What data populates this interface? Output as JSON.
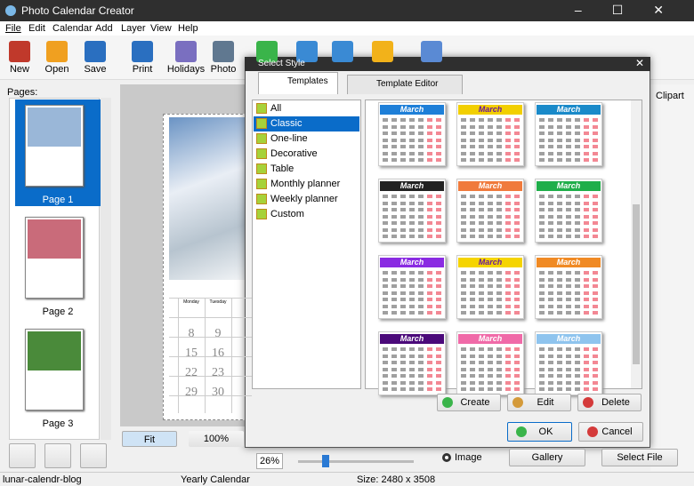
{
  "window": {
    "title": "Photo Calendar Creator"
  },
  "menu": [
    "File",
    "Edit",
    "Calendar",
    "Add",
    "Layer",
    "View",
    "Help"
  ],
  "toolbar": [
    "New",
    "Open",
    "Save",
    "Print",
    "Holidays",
    "Photo"
  ],
  "pages_panel": {
    "label": "Pages:",
    "pages": [
      "Page 1",
      "Page 2",
      "Page 3"
    ]
  },
  "canvas": {
    "weekdays": [
      "Monday",
      "Tuesday"
    ],
    "dates": [
      [
        8,
        9
      ],
      [
        15,
        16
      ],
      [
        22,
        23
      ],
      [
        29,
        30
      ]
    ],
    "zoom_buttons": [
      "Fit",
      "100%"
    ],
    "zoom": "26%"
  },
  "right_panel": {
    "tab": "Clipart",
    "image_option": "Image",
    "buttons": [
      "Gallery",
      "Select File"
    ]
  },
  "dialog": {
    "title": "Select Style",
    "tabs": [
      "Templates",
      "Template Editor"
    ],
    "styles": [
      "All",
      "Classic",
      "One-line",
      "Decorative",
      "Table",
      "Monthly planner",
      "Weekly planner",
      "Custom"
    ],
    "selected_style": 1,
    "templates": [
      {
        "title": "March",
        "color": "#1e7fd8"
      },
      {
        "title": "March",
        "color": "#f2cf00"
      },
      {
        "title": "March",
        "color": "#1a8ac9"
      },
      {
        "title": "March",
        "color": "#222222"
      },
      {
        "title": "March",
        "color": "#f07a3c"
      },
      {
        "title": "March",
        "color": "#1fae4a"
      },
      {
        "title": "March",
        "color": "#8a2be2"
      },
      {
        "title": "March",
        "color": "#f5d400"
      },
      {
        "title": "March",
        "color": "#f08a24"
      },
      {
        "title": "March",
        "color": "#4b0a7a"
      },
      {
        "title": "March",
        "color": "#f06aa8"
      },
      {
        "title": "March",
        "color": "#8fc4ee"
      }
    ],
    "actions": [
      "Create",
      "Edit",
      "Delete"
    ],
    "confirm": [
      "OK",
      "Cancel"
    ]
  },
  "status_bar": [
    "lunar-calendr-blog",
    "Yearly Calendar",
    "Size: 2480 x 3508"
  ]
}
